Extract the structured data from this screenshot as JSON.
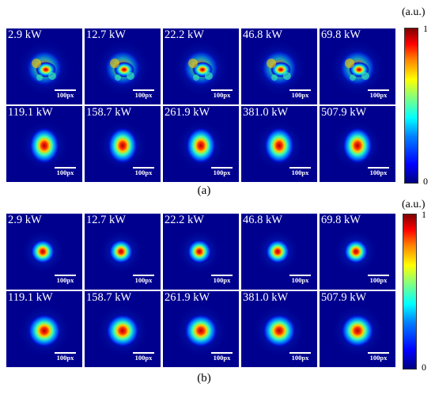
{
  "panels": [
    {
      "unit_label": "(a.u.)",
      "caption": "(a)",
      "colorbar": {
        "max_label": "1",
        "min_label": "0"
      },
      "scale_bar_label": "100px",
      "rows": [
        [
          {
            "label": "2.9 kW",
            "beam": "speckled"
          },
          {
            "label": "12.7 kW",
            "beam": "speckled"
          },
          {
            "label": "22.2 kW",
            "beam": "speckled"
          },
          {
            "label": "46.8 kW",
            "beam": "speckled"
          },
          {
            "label": "69.8 kW",
            "beam": "speckled"
          }
        ],
        [
          {
            "label": "119.1 kW",
            "beam": "compact"
          },
          {
            "label": "158.7 kW",
            "beam": "compact"
          },
          {
            "label": "261.9 kW",
            "beam": "compact"
          },
          {
            "label": "381.0 kW",
            "beam": "compact"
          },
          {
            "label": "507.9 kW",
            "beam": "compact"
          }
        ]
      ]
    },
    {
      "unit_label": "(a.u.)",
      "caption": "(b)",
      "colorbar": {
        "max_label": "1",
        "min_label": "0"
      },
      "scale_bar_label": "100px",
      "rows": [
        [
          {
            "label": "2.9 kW",
            "beam": "small"
          },
          {
            "label": "12.7 kW",
            "beam": "small"
          },
          {
            "label": "22.2 kW",
            "beam": "small"
          },
          {
            "label": "46.8 kW",
            "beam": "small"
          },
          {
            "label": "69.8 kW",
            "beam": "small"
          }
        ],
        [
          {
            "label": "119.1 kW",
            "beam": "round"
          },
          {
            "label": "158.7 kW",
            "beam": "round"
          },
          {
            "label": "261.9 kW",
            "beam": "round"
          },
          {
            "label": "381.0 kW",
            "beam": "round"
          },
          {
            "label": "507.9 kW",
            "beam": "round"
          }
        ]
      ]
    }
  ]
}
